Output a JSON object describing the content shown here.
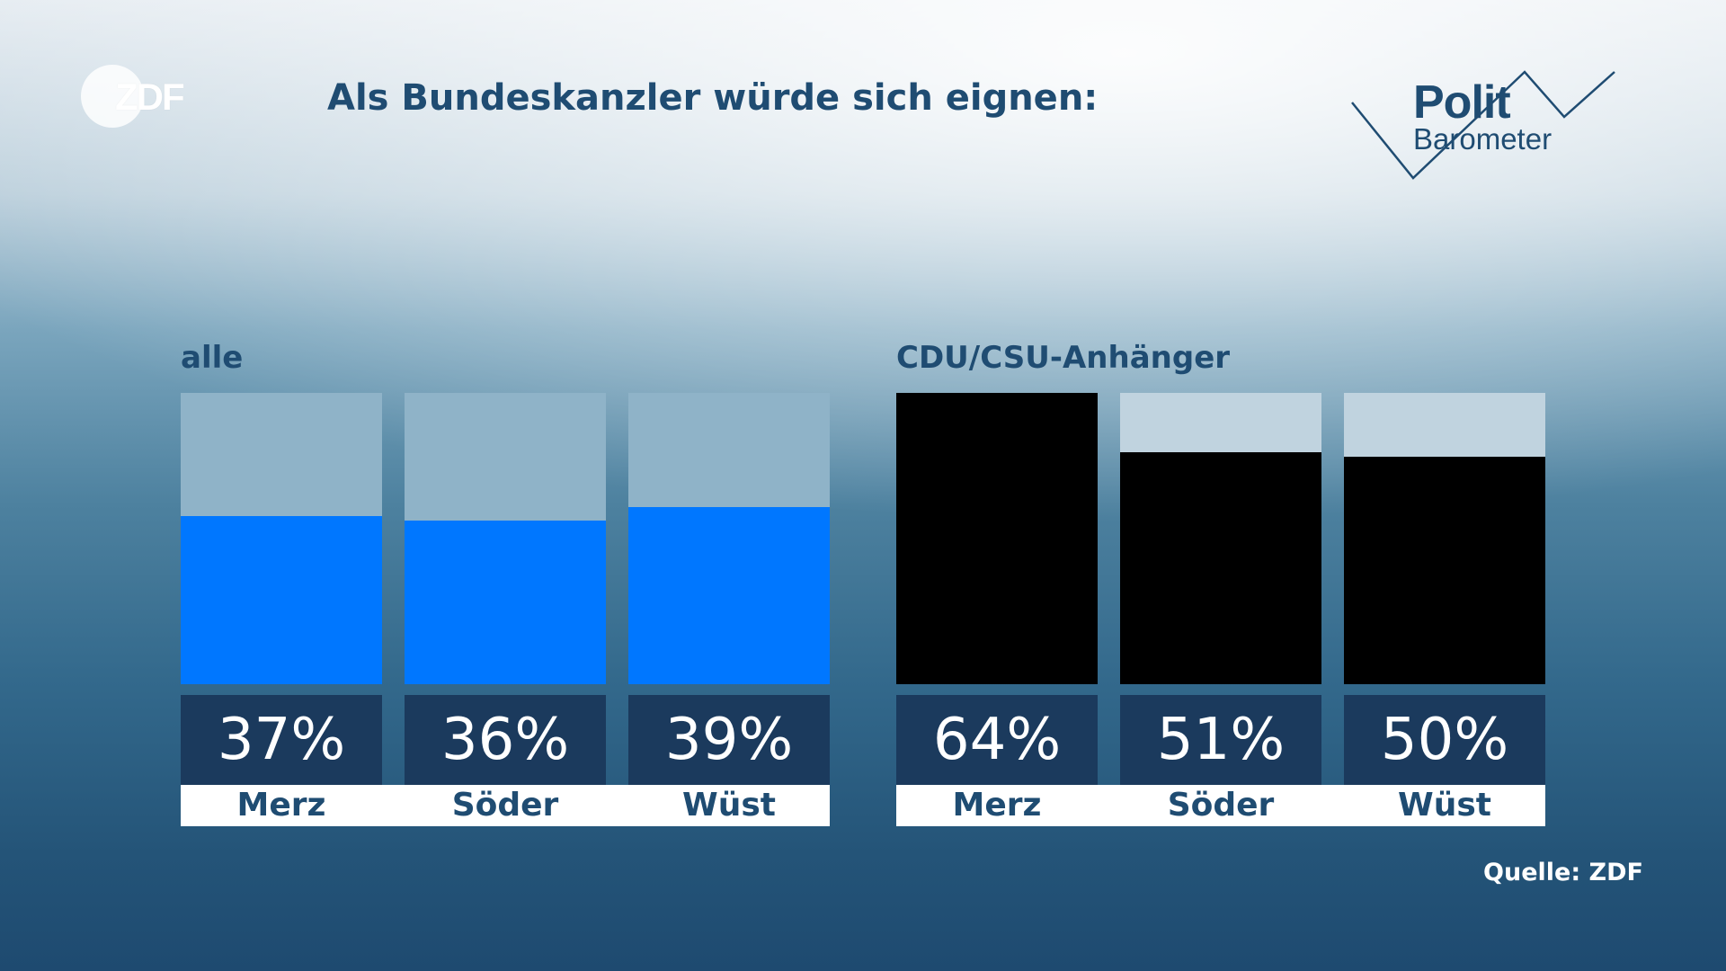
{
  "broadcaster_logo": "ZDF",
  "title": "Als Bundeskanzler würde sich eignen:",
  "program_logo": {
    "line1": "Polit",
    "line2": "Barometer"
  },
  "source": "Quelle: ZDF",
  "colors": {
    "title": "#1f4c72",
    "bar_all": "#0077ff",
    "bar_cdu": "#000000",
    "value_box": "#1b3a5d",
    "track_all": "#8fb3c8",
    "track_cdu": "#c0d3df"
  },
  "chart_data": [
    {
      "type": "bar",
      "title": "alle",
      "categories": [
        "Merz",
        "Söder",
        "Wüst"
      ],
      "values": [
        37,
        36,
        39
      ],
      "value_labels": [
        "37%",
        "36%",
        "39%"
      ],
      "unit": "%",
      "ylim": [
        0,
        64
      ]
    },
    {
      "type": "bar",
      "title": "CDU/CSU-Anhänger",
      "categories": [
        "Merz",
        "Söder",
        "Wüst"
      ],
      "values": [
        64,
        51,
        50
      ],
      "value_labels": [
        "64%",
        "51%",
        "50%"
      ],
      "unit": "%",
      "ylim": [
        0,
        64
      ]
    }
  ]
}
